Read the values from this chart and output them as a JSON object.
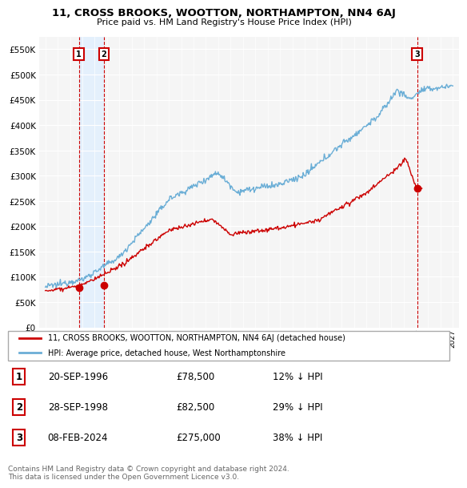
{
  "title": "11, CROSS BROOKS, WOOTTON, NORTHAMPTON, NN4 6AJ",
  "subtitle": "Price paid vs. HM Land Registry's House Price Index (HPI)",
  "ytick_values": [
    0,
    50000,
    100000,
    150000,
    200000,
    250000,
    300000,
    350000,
    400000,
    450000,
    500000,
    550000
  ],
  "xlim": [
    1993.5,
    2027.5
  ],
  "ylim": [
    0,
    575000
  ],
  "hpi_color": "#6baed6",
  "price_color": "#cc0000",
  "grid_color": "#cccccc",
  "bg_color": "#f5f5f5",
  "transaction_points": [
    {
      "year": 1996.72,
      "price": 78500,
      "label": "1"
    },
    {
      "year": 1998.74,
      "price": 82500,
      "label": "2"
    },
    {
      "year": 2024.1,
      "price": 275000,
      "label": "3"
    }
  ],
  "legend_entries": [
    "11, CROSS BROOKS, WOOTTON, NORTHAMPTON, NN4 6AJ (detached house)",
    "HPI: Average price, detached house, West Northamptonshire"
  ],
  "table_rows": [
    {
      "num": "1",
      "date": "20-SEP-1996",
      "price": "£78,500",
      "hpi": "12% ↓ HPI"
    },
    {
      "num": "2",
      "date": "28-SEP-1998",
      "price": "£82,500",
      "hpi": "29% ↓ HPI"
    },
    {
      "num": "3",
      "date": "08-FEB-2024",
      "price": "£275,000",
      "hpi": "38% ↓ HPI"
    }
  ],
  "footnote": "Contains HM Land Registry data © Crown copyright and database right 2024.\nThis data is licensed under the Open Government Licence v3.0."
}
